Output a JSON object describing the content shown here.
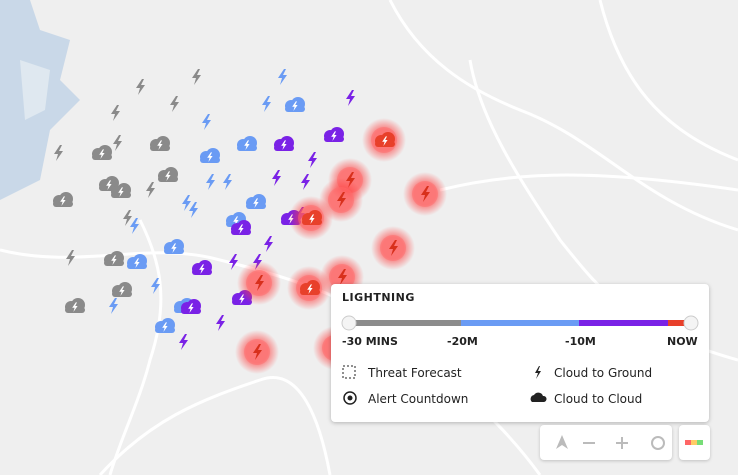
{
  "legend": {
    "title": "LIGHTNING",
    "scale_labels": [
      "-30 MINS",
      "-20M",
      "-10M",
      "NOW"
    ],
    "items": [
      "Threat Forecast",
      "Cloud to Ground",
      "Alert Countdown",
      "Cloud to Cloud"
    ]
  }
}
